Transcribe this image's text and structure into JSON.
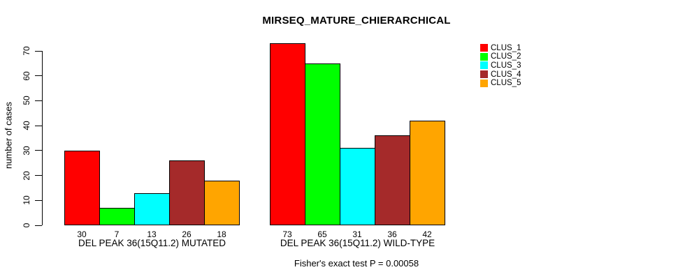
{
  "chart_data": {
    "type": "bar",
    "title": "MIRSEQ_MATURE_CHIERARCHICAL",
    "ylabel": "number of cases",
    "xlabel": "",
    "ylim": [
      0,
      70
    ],
    "yticks": [
      0,
      10,
      20,
      30,
      40,
      50,
      60,
      70
    ],
    "grid": false,
    "bar_border_color": "#000000",
    "legend_position": "top-right",
    "categories": [
      "DEL PEAK 36(15Q11.2) MUTATED",
      "DEL PEAK 36(15Q11.2) WILD-TYPE"
    ],
    "series": [
      {
        "name": "CLUS_1",
        "color": "#FF0000",
        "values": [
          30,
          73
        ]
      },
      {
        "name": "CLUS_2",
        "color": "#00FF00",
        "values": [
          7,
          65
        ]
      },
      {
        "name": "CLUS_3",
        "color": "#00FFFF",
        "values": [
          13,
          31
        ]
      },
      {
        "name": "CLUS_4",
        "color": "#A52A2A",
        "values": [
          26,
          36
        ]
      },
      {
        "name": "CLUS_5",
        "color": "#FFA500",
        "values": [
          18,
          42
        ]
      }
    ],
    "bar_value_labels_shown": true,
    "annotation": "Fisher's exact test P = 0.00058"
  }
}
